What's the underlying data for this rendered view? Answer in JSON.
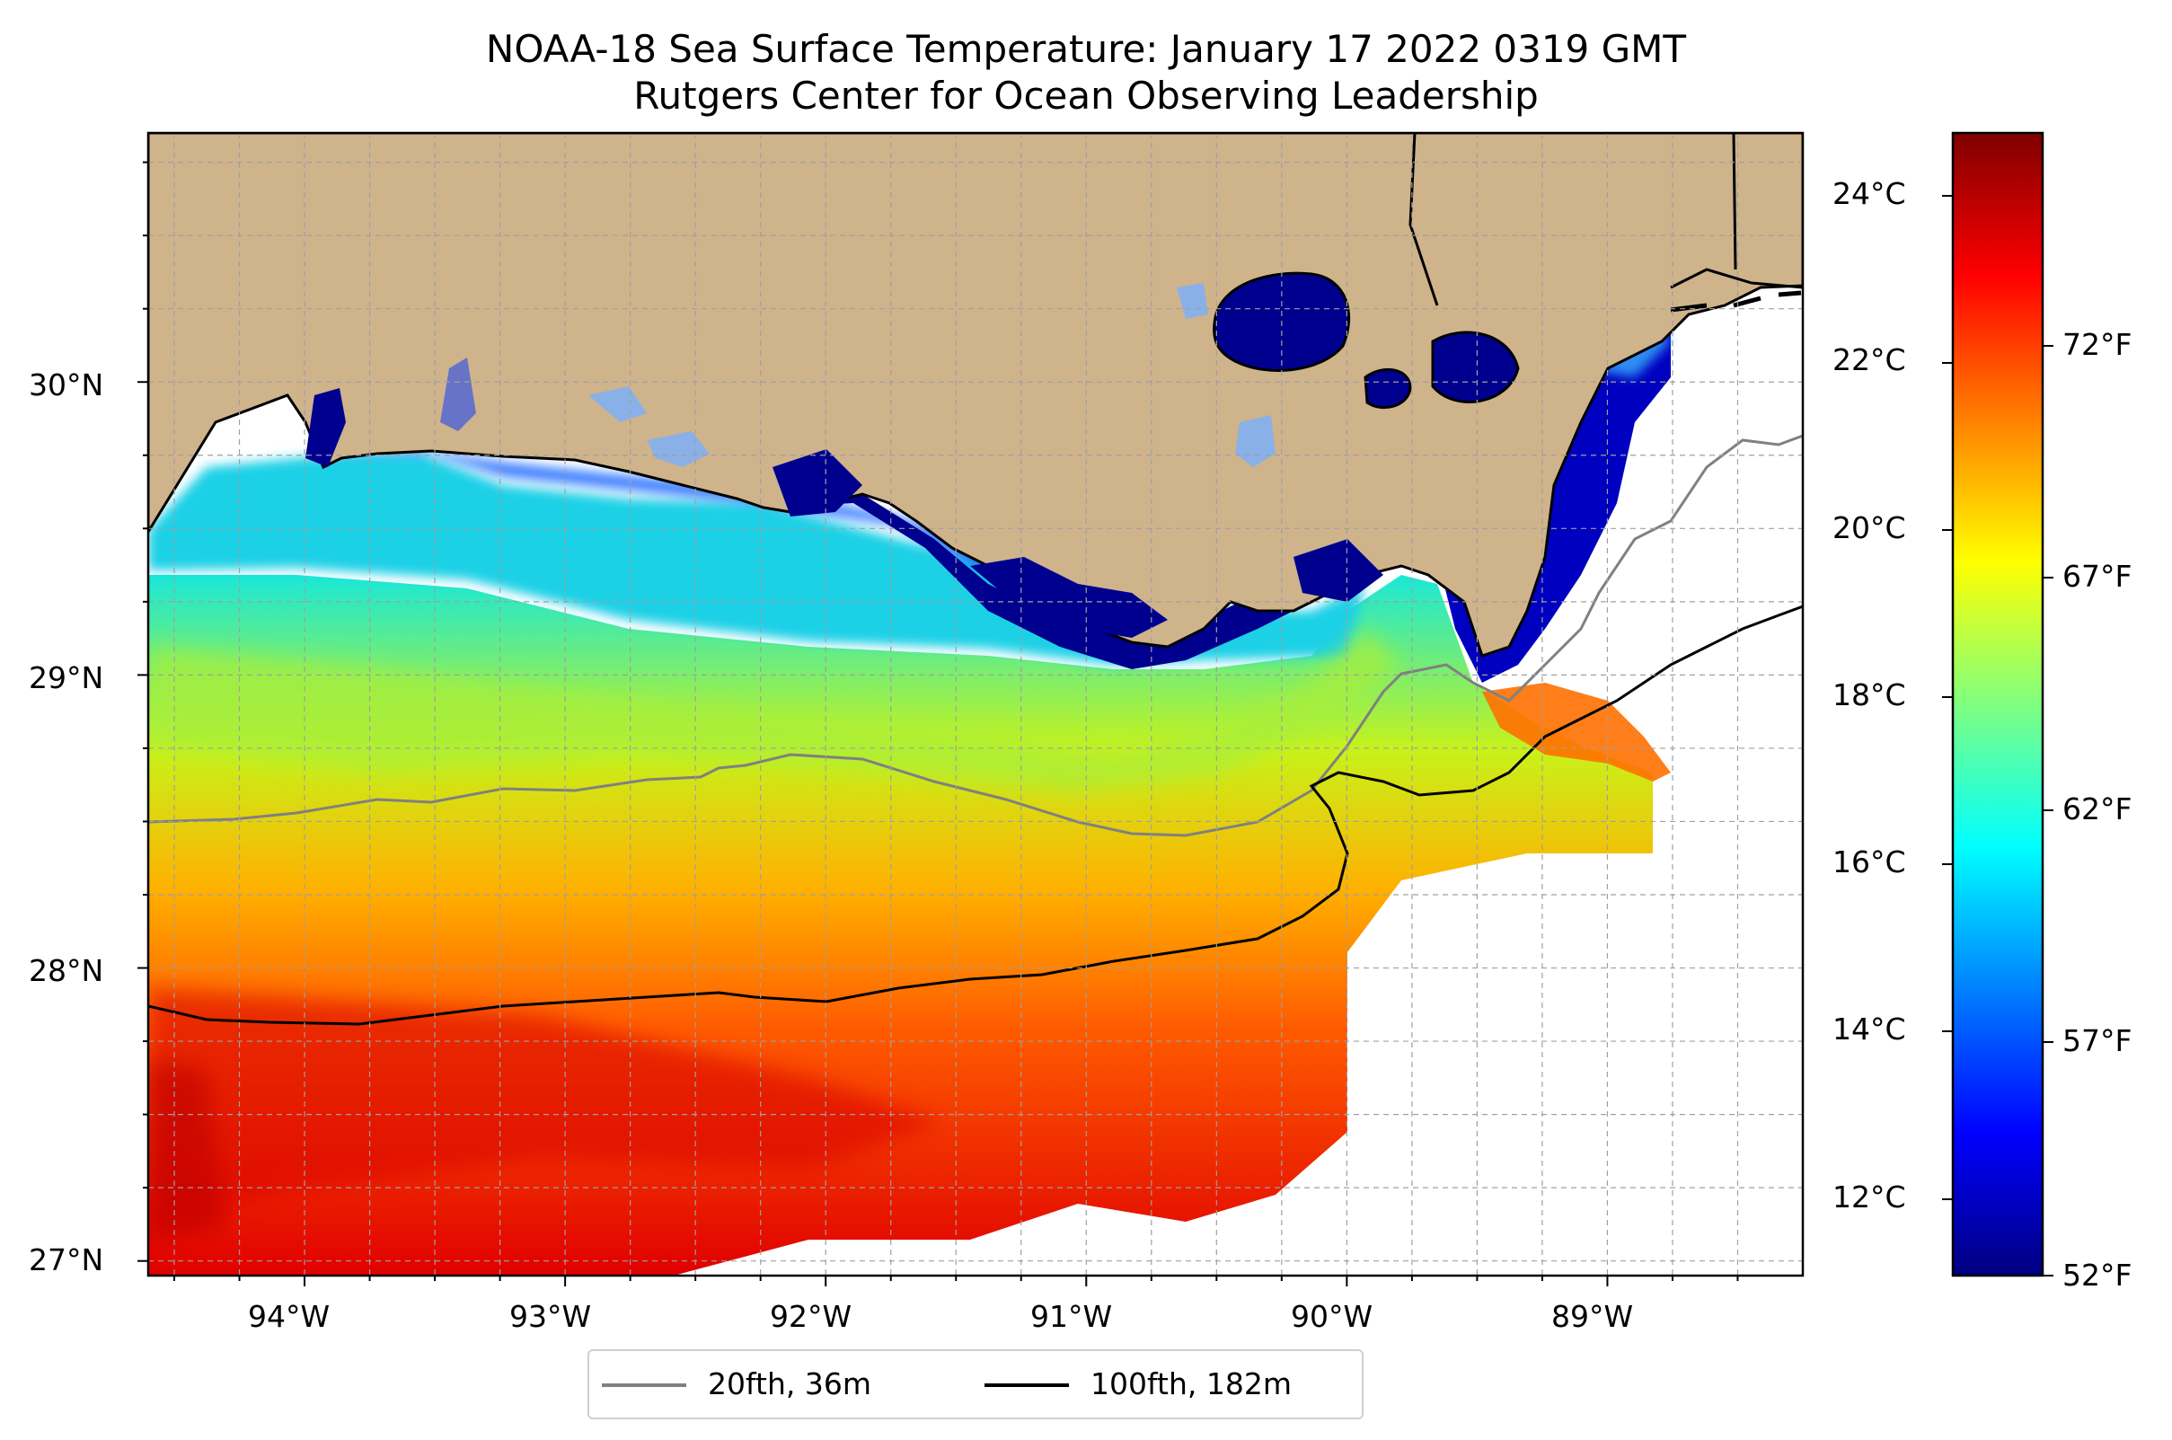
{
  "title": {
    "line1": "NOAA-18 Sea Surface Temperature: January 17 2022 0319 GMT",
    "line2": "Rutgers Center for Ocean Observing Leadership"
  },
  "map": {
    "longitude_ticks": [
      "94°W",
      "93°W",
      "92°W",
      "91°W",
      "90°W",
      "89°W"
    ],
    "latitude_ticks": [
      "30°N",
      "29°N",
      "28°N",
      "27°N"
    ],
    "extent": {
      "lon_min": -94.6,
      "lon_max": -88.25,
      "lat_min": 26.95,
      "lat_max": 30.85
    },
    "colors": {
      "land": "#cfb38b",
      "coast": "#000000",
      "ocean_no_data": "#ffffff"
    }
  },
  "colorbar": {
    "celsius_ticks": [
      "24°C",
      "22°C",
      "20°C",
      "18°C",
      "16°C",
      "14°C",
      "12°C"
    ],
    "fahrenheit_ticks": [
      "72°F",
      "67°F",
      "62°F",
      "57°F",
      "52°F"
    ],
    "colormap": "jet"
  },
  "legend": {
    "items": [
      {
        "label": "20fth, 36m",
        "color": "#808080"
      },
      {
        "label": "100fth, 182m",
        "color": "#000000"
      }
    ]
  }
}
